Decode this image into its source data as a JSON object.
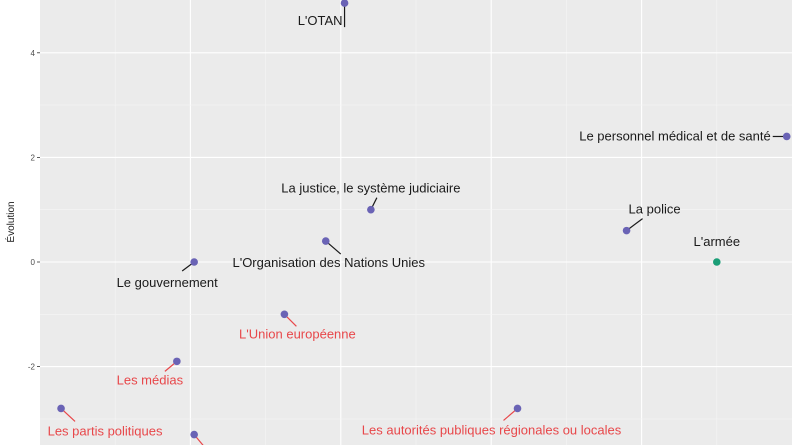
{
  "chart_data": {
    "type": "scatter",
    "title": "",
    "xlabel": "",
    "ylabel": "Évolution",
    "xlim": [
      0.0,
      1.0
    ],
    "ylim": [
      -3.5,
      5.0
    ],
    "yticks": [
      -2,
      0,
      2,
      4
    ],
    "ytick_labels": [
      "-2",
      "0",
      "2",
      "4"
    ],
    "grid": true,
    "colors": {
      "panel_bg": "#ebebeb",
      "grid_major": "#ffffff",
      "grid_minor": "#f5f5f5",
      "point_default": "#6a63b5",
      "point_highlight": "#1b9e77",
      "label_black": "#1a1a1a",
      "label_red": "#e8474a"
    },
    "points": [
      {
        "label": "L'OTAN",
        "x": 0.405,
        "y": 4.95,
        "color": "default",
        "label_color": "black"
      },
      {
        "label": "Le personnel médical et de santé",
        "x": 0.993,
        "y": 2.4,
        "color": "default",
        "label_color": "black"
      },
      {
        "label": "La justice, le système judiciaire",
        "x": 0.44,
        "y": 1.0,
        "color": "default",
        "label_color": "black"
      },
      {
        "label": "La police",
        "x": 0.78,
        "y": 0.6,
        "color": "default",
        "label_color": "black"
      },
      {
        "label": "L'armée",
        "x": 0.9,
        "y": 0.0,
        "color": "highlight",
        "label_color": "black"
      },
      {
        "label": "L'Organisation des Nations Unies",
        "x": 0.38,
        "y": 0.4,
        "color": "default",
        "label_color": "black"
      },
      {
        "label": "Le gouvernement",
        "x": 0.205,
        "y": 0.0,
        "color": "default",
        "label_color": "black"
      },
      {
        "label": "L'Union européenne",
        "x": 0.325,
        "y": -1.0,
        "color": "default",
        "label_color": "red"
      },
      {
        "label": "Les médias",
        "x": 0.182,
        "y": -1.9,
        "color": "default",
        "label_color": "red"
      },
      {
        "label": "Les partis politiques",
        "x": 0.028,
        "y": -2.8,
        "color": "default",
        "label_color": "red"
      },
      {
        "label": "Les autorités publiques régionales ou locales",
        "x": 0.635,
        "y": -2.8,
        "color": "default",
        "label_color": "red"
      },
      {
        "label": "",
        "x": 0.205,
        "y": -3.3,
        "color": "default",
        "label_color": "red"
      }
    ]
  }
}
